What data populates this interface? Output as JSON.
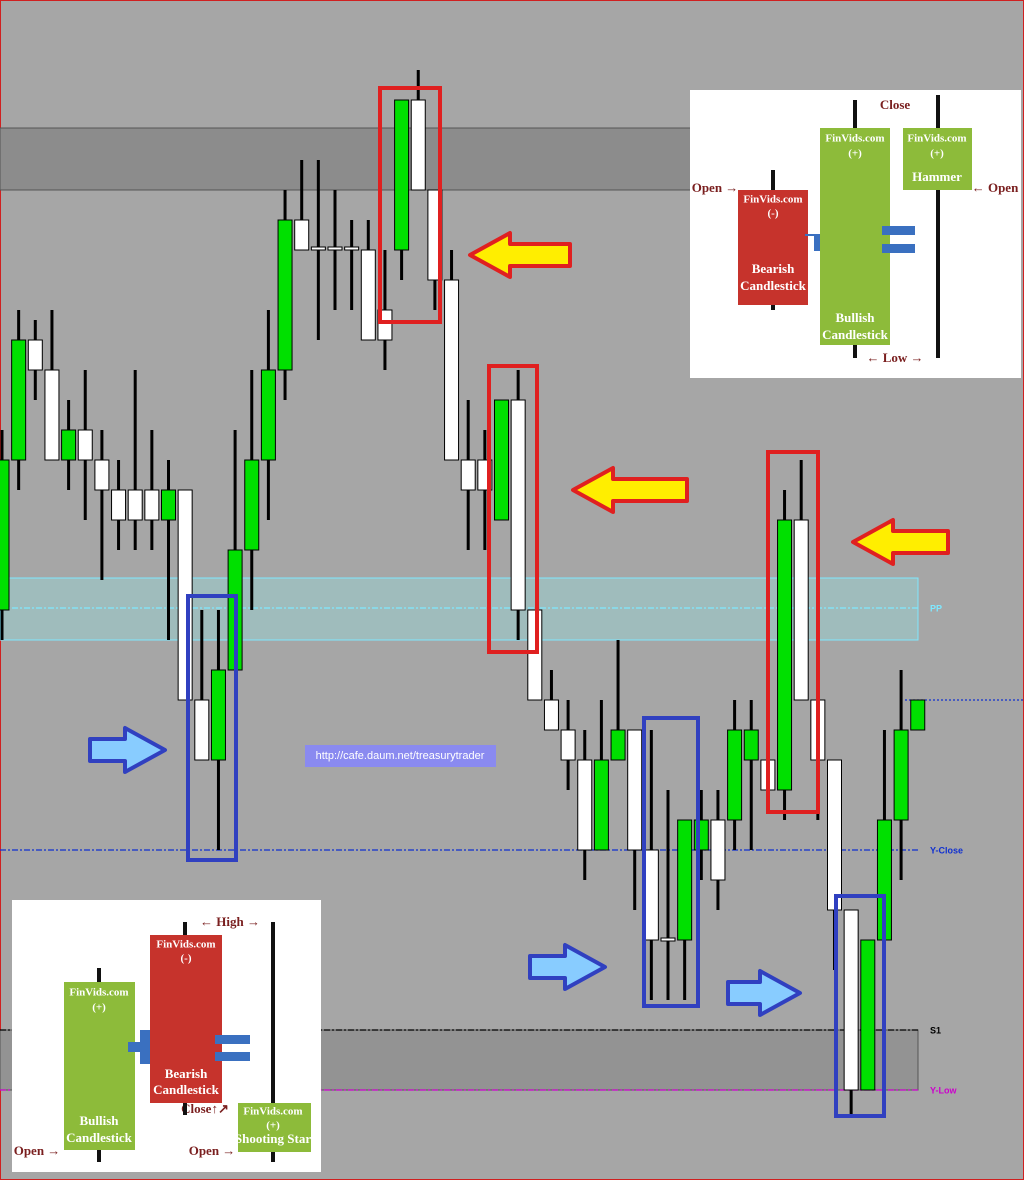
{
  "chart_data": {
    "type": "candlestick",
    "ylim": [
      0,
      118
    ],
    "up_color": "#00e000",
    "down_color": "#ffffff",
    "open": [
      57,
      72,
      84,
      81,
      72,
      75,
      72,
      69,
      69,
      69,
      66,
      69,
      48,
      42,
      51,
      63,
      72,
      81,
      96,
      93.3,
      93.3,
      93.3,
      93,
      87,
      93,
      108,
      99,
      90,
      72,
      72,
      66,
      78,
      57,
      48,
      45,
      42,
      33,
      42,
      45,
      33,
      24.2,
      24,
      33,
      36,
      36,
      42,
      42,
      39,
      66,
      48,
      42,
      27,
      9,
      24,
      36,
      45
    ],
    "high": [
      75,
      87,
      86,
      87,
      78,
      81,
      75,
      72,
      81,
      75,
      72,
      69,
      57,
      57,
      75,
      81,
      87,
      99,
      102,
      102,
      99,
      96,
      96,
      93,
      108,
      111,
      99,
      93,
      78,
      75,
      78,
      81,
      57,
      51,
      48,
      45,
      48,
      54,
      45,
      45,
      39,
      36,
      39,
      39,
      48,
      48,
      45,
      69,
      72,
      48,
      42,
      27,
      24,
      45,
      51,
      48
    ],
    "low": [
      54,
      69,
      78,
      72,
      69,
      66,
      60,
      63,
      63,
      63,
      54,
      48,
      42,
      33,
      51,
      57,
      66,
      78,
      93,
      84,
      87,
      87,
      84,
      81,
      90,
      99,
      87,
      72,
      63,
      63,
      66,
      54,
      48,
      45,
      39,
      30,
      33,
      42,
      27,
      18,
      18,
      18,
      30,
      27,
      33,
      33,
      39,
      36,
      48,
      36,
      21,
      6.5,
      9,
      24,
      30,
      45
    ],
    "close": [
      72,
      84,
      81,
      72,
      75,
      72,
      69,
      66,
      66,
      66,
      69,
      48,
      42,
      51,
      63,
      72,
      81,
      96,
      93,
      93,
      93,
      93,
      84,
      84,
      108,
      99,
      90,
      72,
      69,
      69,
      78,
      57,
      48,
      45,
      42,
      33,
      42,
      45,
      33,
      24,
      23.9,
      36,
      36,
      30,
      45,
      45,
      39,
      66,
      48,
      42,
      27,
      9,
      24,
      36,
      45,
      48
    ],
    "zones": [
      {
        "from": 99,
        "to": 105.2,
        "color": "#8c8c8c"
      },
      {
        "from": 54,
        "to": 60.2,
        "color": "#9fbcbc"
      },
      {
        "from": 9,
        "to": 15,
        "color": "#939393"
      }
    ],
    "levels": [
      {
        "label": "PP",
        "value": 57.2,
        "color": "#7fe8ff"
      },
      {
        "label": "Y-Close",
        "value": 33,
        "color": "#1030d0"
      },
      {
        "label": "S1",
        "value": 15,
        "color": "#000000"
      },
      {
        "label": "Y-Low",
        "value": 9,
        "color": "#cc00cc"
      },
      {
        "value": 48,
        "color": "#1030d0"
      }
    ],
    "watermark": "http://cafe.daum.net/treasurytrader"
  },
  "hammer_diagram": {
    "close": "Close",
    "open_left": "Open →",
    "open_right": "← Open",
    "low": "← Low →",
    "bearish": {
      "site": "FinVids.com",
      "sign": "(-)",
      "name": [
        "Bearish",
        "Candlestick"
      ]
    },
    "bullish": {
      "site": "FinVids.com",
      "sign": "(+)",
      "name": [
        "Bullish",
        "Candlestick"
      ]
    },
    "result": {
      "site": "FinVids.com",
      "sign": "(+)",
      "name": "Hammer"
    }
  },
  "shooting_star_diagram": {
    "high": "← High →",
    "close": "Close↑↗",
    "open_left": "Open →",
    "open_right": "Open →",
    "bullish": {
      "site": "FinVids.com",
      "sign": "(+)",
      "name": [
        "Bullish",
        "Candlestick"
      ]
    },
    "bearish": {
      "site": "FinVids.com",
      "sign": "(-)",
      "name": [
        "Bearish",
        "Candlestick"
      ]
    },
    "result": {
      "site": "FinVids.com",
      "sign": "(+)",
      "name": "Shooting Star"
    }
  }
}
